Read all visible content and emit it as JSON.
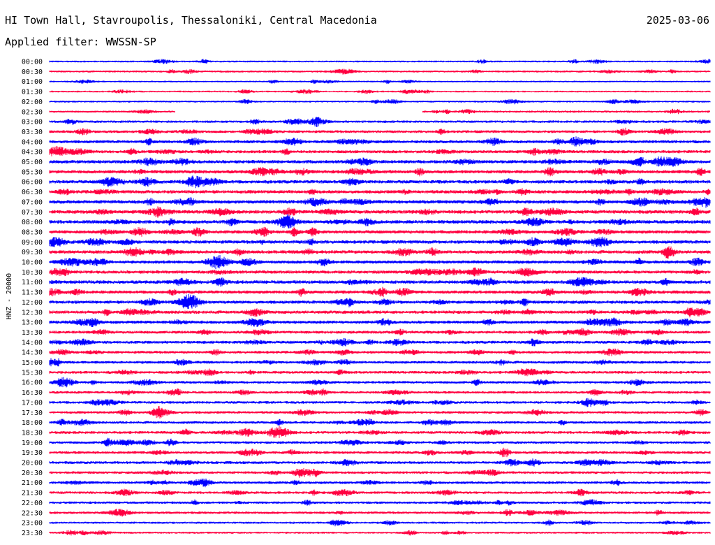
{
  "header": {
    "title": "HI Town Hall, Stavroupolis, Thessaloniki, Central Macedonia",
    "date": "2025-03-06",
    "filter": "Applied filter: WWSSN-SP"
  },
  "chart_data": {
    "type": "line",
    "channel_label": "HNZ - 20000",
    "row_labels": [
      "00:00",
      "00:30",
      "01:00",
      "01:30",
      "02:00",
      "02:30",
      "03:00",
      "03:30",
      "04:00",
      "04:30",
      "05:00",
      "05:30",
      "06:00",
      "06:30",
      "07:00",
      "07:30",
      "08:00",
      "08:30",
      "09:00",
      "09:30",
      "10:00",
      "10:30",
      "11:00",
      "11:30",
      "12:00",
      "12:30",
      "13:00",
      "13:30",
      "14:00",
      "14:30",
      "15:00",
      "15:30",
      "16:00",
      "16:30",
      "17:00",
      "17:30",
      "18:00",
      "18:30",
      "19:00",
      "19:30",
      "20:00",
      "20:30",
      "21:00",
      "21:30",
      "22:00",
      "22:30",
      "23:00",
      "23:30"
    ],
    "row_colors": [
      "#0000ff",
      "#ff0040"
    ],
    "activity": [
      0.25,
      0.3,
      0.2,
      0.22,
      0.25,
      0.3,
      0.45,
      0.55,
      0.65,
      0.65,
      0.75,
      0.75,
      0.75,
      0.75,
      0.8,
      0.8,
      0.8,
      0.75,
      0.75,
      0.75,
      0.7,
      0.7,
      0.75,
      0.7,
      0.7,
      0.7,
      0.65,
      0.6,
      0.6,
      0.55,
      0.55,
      0.55,
      0.5,
      0.5,
      0.5,
      0.5,
      0.5,
      0.55,
      0.5,
      0.55,
      0.55,
      0.5,
      0.5,
      0.5,
      0.45,
      0.45,
      0.35,
      0.3
    ],
    "gaps": [
      {
        "row": "02:30",
        "from_fraction": 0.19,
        "to_fraction": 0.565
      }
    ],
    "grid": false
  }
}
